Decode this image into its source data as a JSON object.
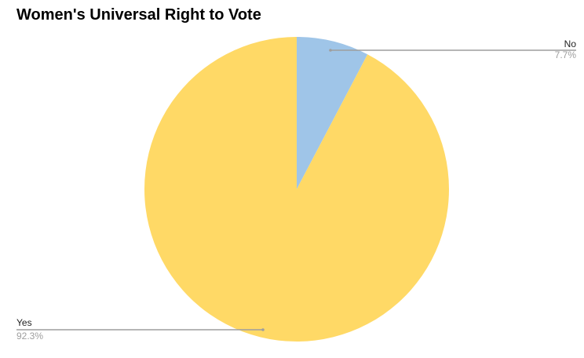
{
  "chart_data": {
    "type": "pie",
    "title": "Women's Universal Right to Vote",
    "slices": [
      {
        "label": "No",
        "value": 7.7,
        "percent_label": "7.7%",
        "color": "#9fc5e8"
      },
      {
        "label": "Yes",
        "value": 92.3,
        "percent_label": "92.3%",
        "color": "#ffd966"
      }
    ],
    "start_angle_deg": 0,
    "direction": "clockwise",
    "leader_line_color": "#9e9e9e"
  }
}
